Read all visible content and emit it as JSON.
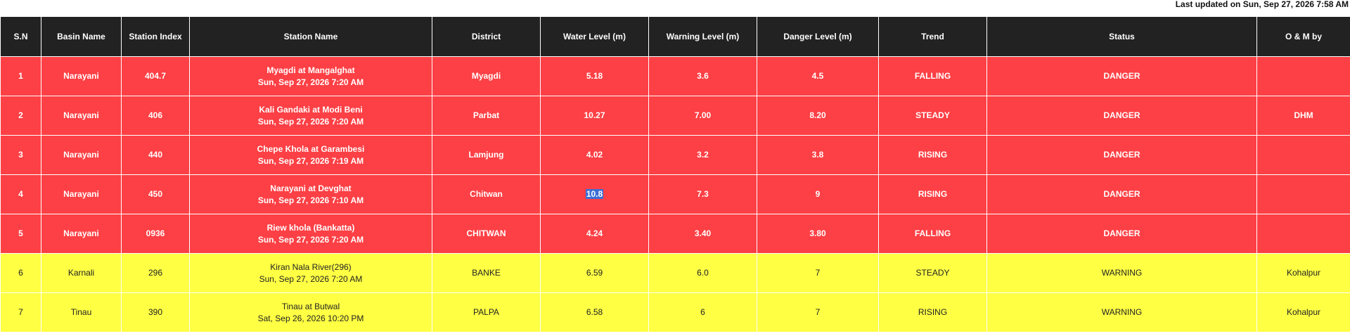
{
  "last_updated": "Last updated on  Sun, Sep 27, 2026 7:58 AM",
  "columns": [
    "S.N",
    "Basin Name",
    "Station Index",
    "Station Name",
    "District",
    "Water Level (m)",
    "Warning Level (m)",
    "Danger Level (m)",
    "Trend",
    "Status",
    "O & M by"
  ],
  "status_colors": {
    "DANGER": "#fc4045",
    "WARNING": "#ffff44"
  },
  "rows": [
    {
      "sn": "1",
      "basin": "Narayani",
      "index": "404.7",
      "station": "Myagdi at Mangalghat",
      "time": "Sun, Sep 27, 2026 7:20 AM",
      "district": "Myagdi",
      "water": "5.18",
      "warning": "3.6",
      "danger": "4.5",
      "trend": "FALLING",
      "status": "DANGER",
      "om": ""
    },
    {
      "sn": "2",
      "basin": "Narayani",
      "index": "406",
      "station": "Kali Gandaki at Modi Beni",
      "time": "Sun, Sep 27, 2026 7:20 AM",
      "district": "Parbat",
      "water": "10.27",
      "warning": "7.00",
      "danger": "8.20",
      "trend": "STEADY",
      "status": "DANGER",
      "om": "DHM"
    },
    {
      "sn": "3",
      "basin": "Narayani",
      "index": "440",
      "station": "Chepe Khola at Garambesi",
      "time": "Sun, Sep 27, 2026 7:19 AM",
      "district": "Lamjung",
      "water": "4.02",
      "warning": "3.2",
      "danger": "3.8",
      "trend": "RISING",
      "status": "DANGER",
      "om": ""
    },
    {
      "sn": "4",
      "basin": "Narayani",
      "index": "450",
      "station": "Narayani at Devghat",
      "time": "Sun, Sep 27, 2026 7:10 AM",
      "district": "Chitwan",
      "water": "10.8",
      "warning": "7.3",
      "danger": "9",
      "trend": "RISING",
      "status": "DANGER",
      "om": ""
    },
    {
      "sn": "5",
      "basin": "Narayani",
      "index": "0936",
      "station": "Riew khola (Bankatta)",
      "time": "Sun, Sep 27, 2026 7:20 AM",
      "district": "CHITWAN",
      "water": "4.24",
      "warning": "3.40",
      "danger": "3.80",
      "trend": "FALLING",
      "status": "DANGER",
      "om": ""
    },
    {
      "sn": "6",
      "basin": "Karnali",
      "index": "296",
      "station": "Kiran Nala River(296)",
      "time": "Sun, Sep 27, 2026 7:20 AM",
      "district": "BANKE",
      "water": "6.59",
      "warning": "6.0",
      "danger": "7",
      "trend": "STEADY",
      "status": "WARNING",
      "om": "Kohalpur"
    },
    {
      "sn": "7",
      "basin": "Tinau",
      "index": "390",
      "station": "Tinau at Butwal",
      "time": "Sat, Sep 26, 2026 10:20 PM",
      "district": "PALPA",
      "water": "6.58",
      "warning": "6",
      "danger": "7",
      "trend": "RISING",
      "status": "WARNING",
      "om": "Kohalpur"
    }
  ]
}
